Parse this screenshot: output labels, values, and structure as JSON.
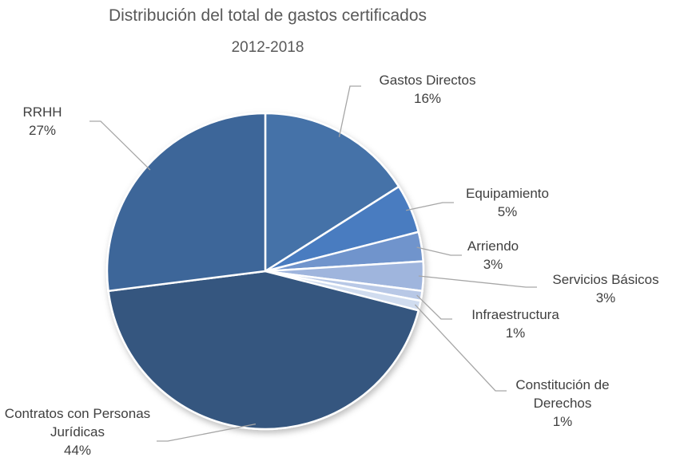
{
  "chart_data": {
    "type": "pie",
    "title": "Distribución del total de gastos certificados",
    "subtitle": "2012-2018",
    "categories": [
      "Gastos Directos",
      "Equipamiento",
      "Arriendo",
      "Servicios Básicos",
      "Infraestructura",
      "Constitución de Derechos",
      "Contratos con Personas Jurídicas",
      "RRHH"
    ],
    "values": [
      16,
      5,
      3,
      3,
      1,
      1,
      44,
      27
    ],
    "value_labels": [
      "16%",
      "5%",
      "3%",
      "3%",
      "1%",
      "1%",
      "44%",
      "27%"
    ],
    "colors": [
      "#4472a8",
      "#4a7cc0",
      "#6f94cc",
      "#9fb5dd",
      "#b8c8e6",
      "#d0dcef",
      "#35577f",
      "#3e6699"
    ]
  }
}
